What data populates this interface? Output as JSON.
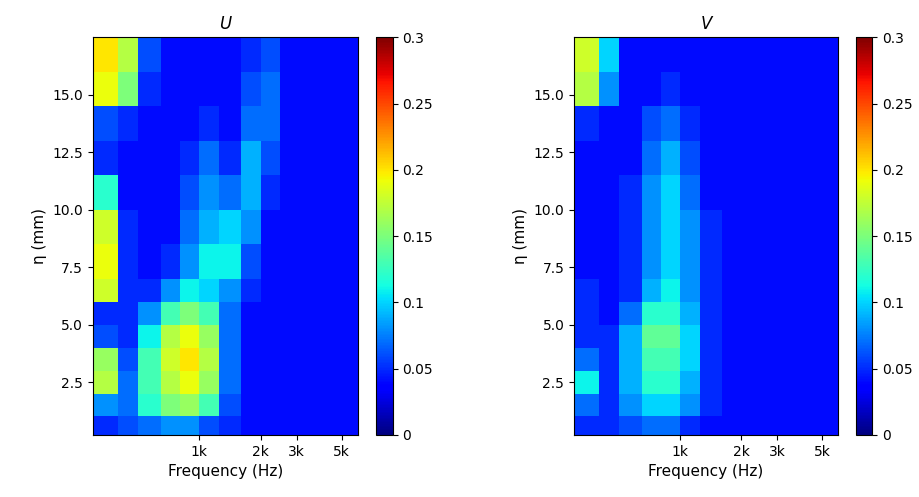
{
  "chart_data": [
    {
      "type": "heatmap",
      "title": "U",
      "xlabel": "Frequency (Hz)",
      "ylabel": "η (mm)",
      "log": "x",
      "color": "jet",
      "xlim": [
        300,
        6000
      ],
      "ylim": [
        0.2,
        17.5
      ],
      "xticks": [
        {
          "value": 1000,
          "label": "1k"
        },
        {
          "value": 2000,
          "label": "2k"
        },
        {
          "value": 3000,
          "label": "3k"
        },
        {
          "value": 5000,
          "label": "5k"
        }
      ],
      "yticks": [
        2.5,
        5.0,
        7.5,
        10.0,
        12.5,
        15.0
      ],
      "x_edges": [
        300,
        400,
        500,
        650,
        800,
        1000,
        1250,
        1600,
        2000,
        2500,
        3200,
        4200,
        6000
      ],
      "y_edges": [
        0.2,
        1,
        2,
        3,
        4,
        5,
        6,
        7,
        8.5,
        10,
        11.5,
        13,
        14.5,
        16,
        17.5
      ],
      "cells": [
        [
          0.05,
          0.06,
          0.07,
          0.08,
          0.08,
          0.06,
          0.05,
          0.04,
          0.04,
          0.04,
          0.04,
          0.04
        ],
        [
          0.08,
          0.07,
          0.12,
          0.15,
          0.16,
          0.13,
          0.06,
          0.04,
          0.04,
          0.04,
          0.04,
          0.04
        ],
        [
          0.17,
          0.07,
          0.13,
          0.17,
          0.19,
          0.16,
          0.07,
          0.04,
          0.04,
          0.04,
          0.04,
          0.04
        ],
        [
          0.16,
          0.06,
          0.13,
          0.18,
          0.2,
          0.17,
          0.07,
          0.04,
          0.04,
          0.04,
          0.04,
          0.04
        ],
        [
          0.06,
          0.05,
          0.11,
          0.17,
          0.19,
          0.16,
          0.07,
          0.04,
          0.04,
          0.04,
          0.04,
          0.04
        ],
        [
          0.05,
          0.05,
          0.08,
          0.13,
          0.15,
          0.13,
          0.07,
          0.04,
          0.04,
          0.04,
          0.04,
          0.04
        ],
        [
          0.18,
          0.05,
          0.05,
          0.08,
          0.11,
          0.1,
          0.08,
          0.05,
          0.04,
          0.04,
          0.04,
          0.04
        ],
        [
          0.19,
          0.05,
          0.04,
          0.05,
          0.08,
          0.11,
          0.11,
          0.06,
          0.04,
          0.04,
          0.04,
          0.04
        ],
        [
          0.18,
          0.05,
          0.04,
          0.04,
          0.07,
          0.09,
          0.1,
          0.08,
          0.04,
          0.04,
          0.04,
          0.04
        ],
        [
          0.12,
          0.04,
          0.04,
          0.04,
          0.06,
          0.08,
          0.07,
          0.09,
          0.05,
          0.04,
          0.04,
          0.04
        ],
        [
          0.05,
          0.04,
          0.04,
          0.04,
          0.05,
          0.07,
          0.05,
          0.09,
          0.06,
          0.04,
          0.04,
          0.04
        ],
        [
          0.06,
          0.05,
          0.04,
          0.04,
          0.04,
          0.05,
          0.04,
          0.07,
          0.07,
          0.04,
          0.04,
          0.04
        ],
        [
          0.19,
          0.15,
          0.05,
          0.04,
          0.04,
          0.04,
          0.04,
          0.06,
          0.07,
          0.04,
          0.04,
          0.04
        ],
        [
          0.2,
          0.17,
          0.06,
          0.04,
          0.04,
          0.04,
          0.04,
          0.05,
          0.06,
          0.04,
          0.04,
          0.04
        ]
      ],
      "colorbar": {
        "range": [
          0,
          0.3
        ],
        "ticks": [
          0,
          0.05,
          0.1,
          0.15,
          0.2,
          0.25,
          0.3
        ]
      }
    },
    {
      "type": "heatmap",
      "title": "V",
      "xlabel": "Frequency (Hz)",
      "ylabel": "η (mm)",
      "log": "x",
      "color": "jet",
      "xlim": [
        300,
        6000
      ],
      "ylim": [
        0.2,
        17.5
      ],
      "xticks": [
        {
          "value": 1000,
          "label": "1k"
        },
        {
          "value": 2000,
          "label": "2k"
        },
        {
          "value": 3000,
          "label": "3k"
        },
        {
          "value": 5000,
          "label": "5k"
        }
      ],
      "yticks": [
        2.5,
        5.0,
        7.5,
        10.0,
        12.5,
        15.0
      ],
      "x_edges": [
        300,
        400,
        500,
        650,
        800,
        1000,
        1250,
        1600,
        2000,
        2500,
        3200,
        4200,
        6000
      ],
      "y_edges": [
        0.2,
        1,
        2,
        3,
        4,
        5,
        6,
        7,
        8.5,
        10,
        11.5,
        13,
        14.5,
        16,
        17.5
      ],
      "cells": [
        [
          0.05,
          0.05,
          0.06,
          0.07,
          0.07,
          0.05,
          0.04,
          0.04,
          0.04,
          0.04,
          0.04,
          0.04
        ],
        [
          0.07,
          0.05,
          0.08,
          0.1,
          0.1,
          0.08,
          0.05,
          0.04,
          0.04,
          0.04,
          0.04,
          0.04
        ],
        [
          0.11,
          0.05,
          0.09,
          0.12,
          0.12,
          0.09,
          0.05,
          0.04,
          0.04,
          0.04,
          0.04,
          0.04
        ],
        [
          0.07,
          0.05,
          0.09,
          0.13,
          0.13,
          0.1,
          0.05,
          0.04,
          0.04,
          0.04,
          0.04,
          0.04
        ],
        [
          0.05,
          0.05,
          0.09,
          0.14,
          0.14,
          0.1,
          0.05,
          0.04,
          0.04,
          0.04,
          0.04,
          0.04
        ],
        [
          0.05,
          0.04,
          0.07,
          0.12,
          0.12,
          0.09,
          0.05,
          0.04,
          0.04,
          0.04,
          0.04,
          0.04
        ],
        [
          0.05,
          0.04,
          0.05,
          0.09,
          0.11,
          0.08,
          0.05,
          0.04,
          0.04,
          0.04,
          0.04,
          0.04
        ],
        [
          0.04,
          0.04,
          0.05,
          0.08,
          0.1,
          0.08,
          0.05,
          0.04,
          0.04,
          0.04,
          0.04,
          0.04
        ],
        [
          0.04,
          0.04,
          0.05,
          0.08,
          0.1,
          0.08,
          0.05,
          0.04,
          0.04,
          0.04,
          0.04,
          0.04
        ],
        [
          0.04,
          0.04,
          0.05,
          0.08,
          0.1,
          0.07,
          0.04,
          0.04,
          0.04,
          0.04,
          0.04,
          0.04
        ],
        [
          0.04,
          0.04,
          0.04,
          0.07,
          0.09,
          0.06,
          0.04,
          0.04,
          0.04,
          0.04,
          0.04,
          0.04
        ],
        [
          0.05,
          0.04,
          0.04,
          0.06,
          0.07,
          0.05,
          0.04,
          0.04,
          0.04,
          0.04,
          0.04,
          0.04
        ],
        [
          0.17,
          0.08,
          0.04,
          0.04,
          0.05,
          0.04,
          0.04,
          0.04,
          0.04,
          0.04,
          0.04,
          0.04
        ],
        [
          0.18,
          0.1,
          0.04,
          0.04,
          0.04,
          0.04,
          0.04,
          0.04,
          0.04,
          0.04,
          0.04,
          0.04
        ]
      ],
      "colorbar": {
        "range": [
          0,
          0.3
        ],
        "ticks": [
          0,
          0.05,
          0.1,
          0.15,
          0.2,
          0.25,
          0.3
        ]
      }
    }
  ]
}
